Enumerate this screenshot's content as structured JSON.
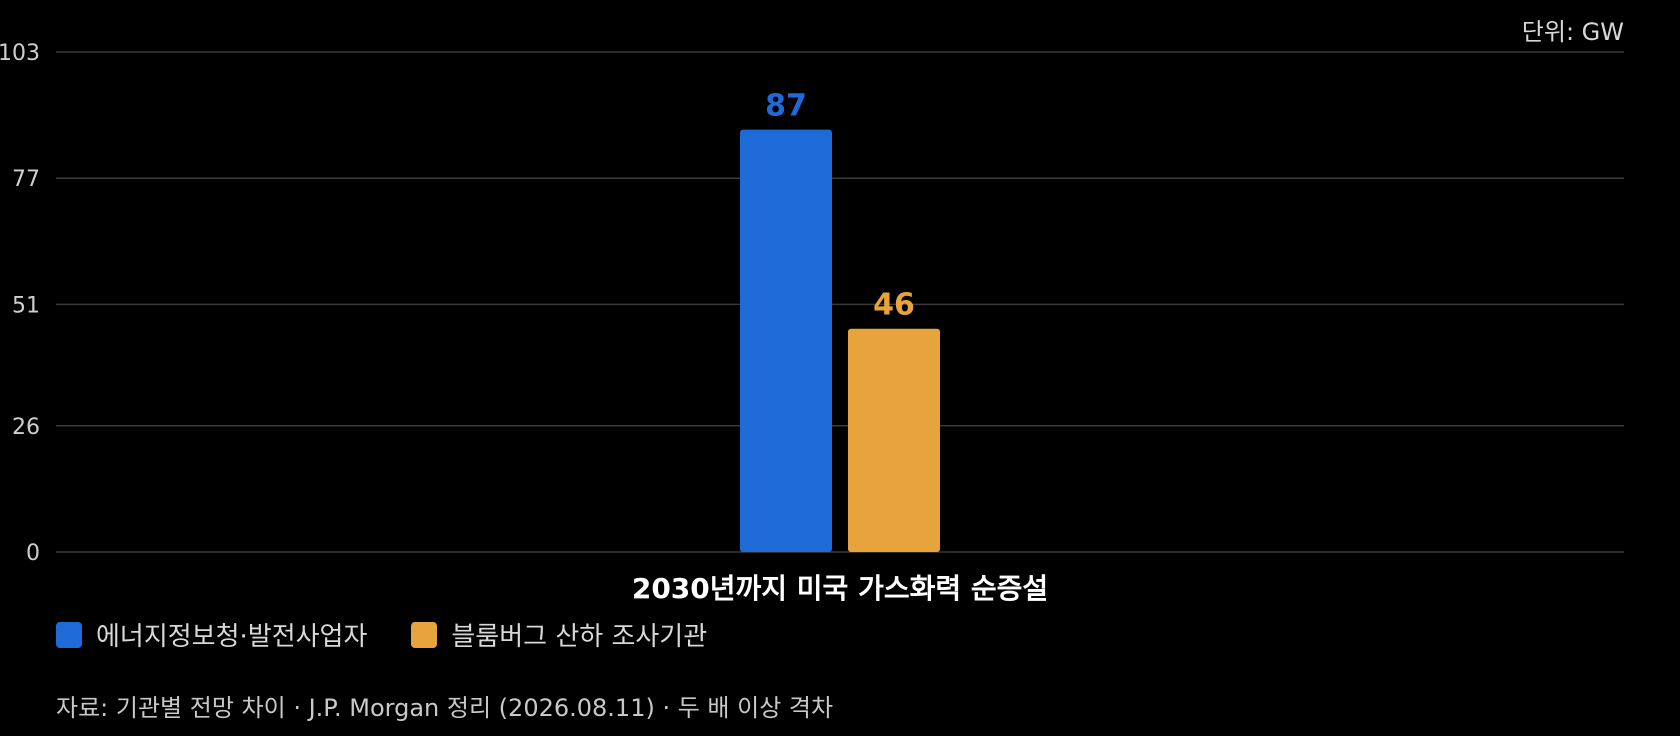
{
  "unit_label": "단위: GW",
  "source_note": "자료: 기관별 전망 차이 · J.P. Morgan 정리 (2026.08.11) · 두 배 이상 격차",
  "colors": {
    "background": "#000000",
    "gridline": "#3a3a3a",
    "series_1": "#1e6ad6",
    "series_2": "#e8a43c"
  },
  "chart_data": {
    "type": "bar",
    "categories": [
      "2030년까지 미국 가스화력 순증설"
    ],
    "series": [
      {
        "name": "에너지정보청·발전사업자",
        "values": [
          87
        ],
        "color": "#1e6ad6"
      },
      {
        "name": "블룸버그 산하 조사기관",
        "values": [
          46
        ],
        "color": "#e8a43c"
      }
    ],
    "yticks": [
      0,
      26,
      51,
      77,
      103
    ],
    "ylim": [
      0,
      103
    ],
    "grid": true,
    "legend_position": "bottom-left",
    "data_labels": true
  }
}
